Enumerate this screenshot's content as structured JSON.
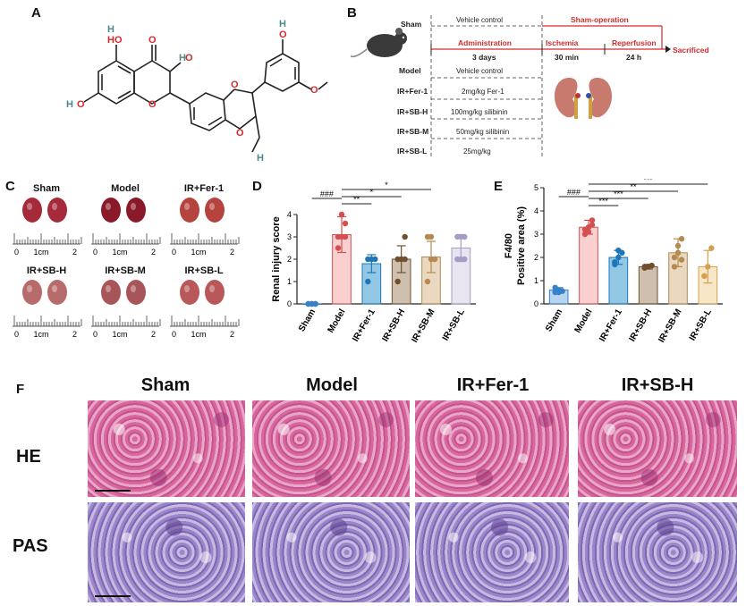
{
  "panels": {
    "A": "A",
    "B": "B",
    "C": "C",
    "D": "D",
    "E": "E",
    "F": "F"
  },
  "molecule": {
    "atom_labels": [
      "HO",
      "O",
      "O",
      "H",
      "O",
      "O",
      "O",
      "O",
      "H",
      "O",
      "H",
      "O",
      "H",
      "H"
    ]
  },
  "design": {
    "groups": [
      "Sham",
      "Model",
      "IR+Fer-1",
      "IR+SB-H",
      "IR+SB-M",
      "IR+SB-L"
    ],
    "sham_treatment": "Vehicle control",
    "sham_operation": "Sham-operation",
    "administration": "Administration",
    "administration_days": "3 days",
    "ischemia": "Ischemia",
    "ischemia_time": "30 min",
    "reperfusion": "Reperfusion",
    "reperfusion_time": "24 h",
    "sacrificed": "Sacrificed",
    "treatments": [
      "Vehicle control",
      "2mg/kg Fer-1",
      "100mg/kg silibinin",
      "50mg/kg silibinin",
      "25mg/kg"
    ],
    "accent_color": "#d42a2a"
  },
  "kidneys": {
    "labels": [
      "Sham",
      "Model",
      "IR+Fer-1",
      "IR+SB-H",
      "IR+SB-M",
      "IR+SB-L"
    ],
    "ruler_ticks": [
      "0",
      "1cm",
      "2"
    ],
    "colors": [
      "#a52a3a",
      "#8a1a2a",
      "#b5443e",
      "#b86b6b",
      "#a8555a",
      "#b8585a"
    ]
  },
  "chart_data": [
    {
      "type": "bar",
      "ylabel": "Renal injury score",
      "categories": [
        "Sham",
        "Model",
        "IR+Fer-1",
        "IR+SB-H",
        "IR+SB-M",
        "IR+SB-L"
      ],
      "values": [
        0,
        3.1,
        1.8,
        2.0,
        2.1,
        2.5
      ],
      "errors": [
        0,
        0.8,
        0.4,
        0.6,
        0.7,
        0.6
      ],
      "points": [
        [
          0,
          0,
          0,
          0,
          0,
          0
        ],
        [
          2.5,
          3,
          3,
          3,
          4,
          3.6
        ],
        [
          1,
          2,
          2,
          2,
          2
        ],
        [
          1,
          2,
          2,
          2,
          2,
          3
        ],
        [
          1,
          2,
          2,
          3,
          3,
          2
        ],
        [
          2,
          3,
          3,
          3,
          2,
          2
        ]
      ],
      "ylim": [
        0,
        4
      ],
      "yticks": [
        "0",
        "1",
        "2",
        "3",
        "4"
      ],
      "colors": [
        "#7fb3e0",
        "#f4a9a8",
        "#3a9bd0",
        "#a58a6e",
        "#d8b88e",
        "#d6cfe4"
      ],
      "edge_colors": [
        "#3a80c8",
        "#d45050",
        "#1e76b8",
        "#6e5030",
        "#b48a50",
        "#a89cc4"
      ],
      "significance": [
        {
          "from": "Sham",
          "to": "Model",
          "label": "###"
        },
        {
          "from": "Model",
          "to": "IR+Fer-1",
          "label": "**"
        },
        {
          "from": "Model",
          "to": "IR+SB-H",
          "label": "*"
        },
        {
          "from": "Model",
          "to": "IR+SB-M",
          "label": "*"
        }
      ]
    },
    {
      "type": "bar",
      "ylabel": "F4/80\nPositive area (%)",
      "categories": [
        "Sham",
        "Model",
        "IR+Fer-1",
        "IR+SB-H",
        "IR+SB-M",
        "IR+SB-L"
      ],
      "values": [
        0.6,
        3.3,
        2.0,
        1.6,
        2.2,
        1.6
      ],
      "errors": [
        0.1,
        0.3,
        0.3,
        0.1,
        0.6,
        0.7
      ],
      "points": [
        [
          0.5,
          0.6,
          0.55,
          0.7,
          0.5
        ],
        [
          3.0,
          3.3,
          3.6,
          3.2,
          3.1,
          3.4
        ],
        [
          1.8,
          2.0,
          2.2,
          1.7,
          2.3
        ],
        [
          1.6,
          1.6,
          1.65,
          1.55,
          1.6
        ],
        [
          1.6,
          2.2,
          2.8,
          2.0,
          2.5,
          1.9
        ],
        [
          1.2,
          1.6,
          2.4
        ]
      ],
      "ylim": [
        0,
        5
      ],
      "yticks": [
        "0",
        "1",
        "2",
        "3",
        "4",
        "5"
      ],
      "colors": [
        "#7fb3e0",
        "#f4a9a8",
        "#3a9bd0",
        "#a58a6e",
        "#d8b88e",
        "#f3d19a"
      ],
      "edge_colors": [
        "#3a80c8",
        "#d45050",
        "#1e76b8",
        "#6e5030",
        "#b48a50",
        "#d4a050"
      ],
      "significance": [
        {
          "from": "Sham",
          "to": "Model",
          "label": "###"
        },
        {
          "from": "Model",
          "to": "IR+Fer-1",
          "label": "***"
        },
        {
          "from": "Model",
          "to": "IR+SB-H",
          "label": "***"
        },
        {
          "from": "Model",
          "to": "IR+SB-M",
          "label": "**"
        },
        {
          "from": "Model",
          "to": "IR+SB-L",
          "label": "***"
        }
      ]
    }
  ],
  "histology": {
    "columns": [
      "Sham",
      "Model",
      "IR+Fer-1",
      "IR+SB-H"
    ],
    "rows": [
      "HE",
      "PAS"
    ]
  }
}
